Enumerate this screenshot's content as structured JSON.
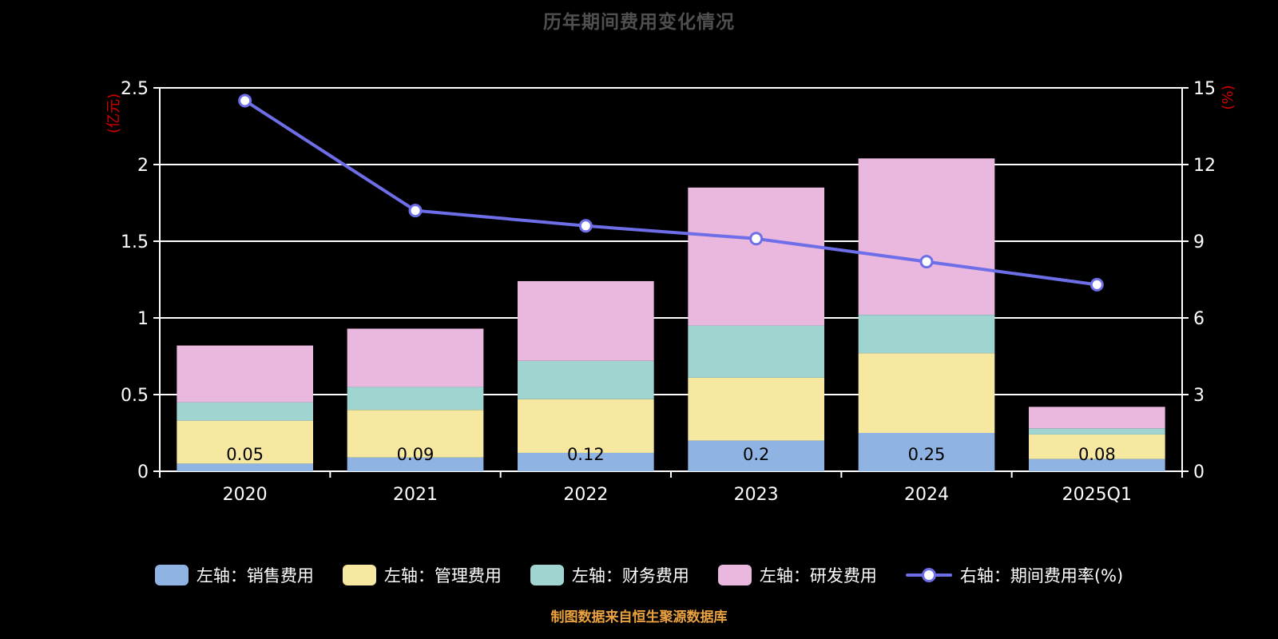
{
  "page": {
    "title": "历年期间费用变化情况",
    "footer": "制图数据来自恒生聚源数据库"
  },
  "colors": {
    "background": "#000000",
    "title": "#4f4f4f",
    "grid": "#ffffff",
    "axis_text": "#ffffff",
    "axis_name": "#d40000",
    "bar_value_label": "#000000",
    "footer": "#eba23f",
    "line": "#6e6ee8",
    "sales": "#8fb4e3",
    "admin": "#f6e8a0",
    "finance": "#9fd4d0",
    "rnd": "#eab7de"
  },
  "chart_data": {
    "type": "bar",
    "subtype": "stacked-bar-with-line",
    "title": "历年期间费用变化情况",
    "footer": "制图数据来自恒生聚源数据库",
    "categories": [
      "2020",
      "2021",
      "2022",
      "2023",
      "2024",
      "2025Q1"
    ],
    "left_axis": {
      "name": "(亿元)",
      "min": 0,
      "max": 2.5,
      "ticks": [
        0,
        0.5,
        1,
        1.5,
        2,
        2.5
      ]
    },
    "right_axis": {
      "name": "(%)",
      "min": 0,
      "max": 15,
      "ticks": [
        0,
        3,
        6,
        9,
        12,
        15
      ]
    },
    "series": [
      {
        "name": "左轴：销售费用",
        "type": "bar",
        "axis": "left",
        "color": "#8fb4e3",
        "values": [
          0.05,
          0.09,
          0.12,
          0.2,
          0.25,
          0.08
        ]
      },
      {
        "name": "左轴：管理费用",
        "type": "bar",
        "axis": "left",
        "color": "#f6e8a0",
        "values": [
          0.28,
          0.31,
          0.35,
          0.41,
          0.52,
          0.16
        ]
      },
      {
        "name": "左轴：财务费用",
        "type": "bar",
        "axis": "left",
        "color": "#9fd4d0",
        "values": [
          0.12,
          0.15,
          0.25,
          0.34,
          0.25,
          0.04
        ]
      },
      {
        "name": "左轴：研发费用",
        "type": "bar",
        "axis": "left",
        "color": "#eab7de",
        "values": [
          0.37,
          0.38,
          0.52,
          0.9,
          1.02,
          0.14
        ]
      },
      {
        "name": "右轴：期间费用率(%)",
        "type": "line",
        "axis": "right",
        "color": "#6e6ee8",
        "values": [
          14.5,
          10.2,
          9.6,
          9.1,
          8.2,
          7.3
        ]
      }
    ],
    "bar_labels": [
      "0.05",
      "0.09",
      "0.12",
      "0.2",
      "0.25",
      "0.08"
    ],
    "legend_position": "bottom",
    "grid": true
  }
}
